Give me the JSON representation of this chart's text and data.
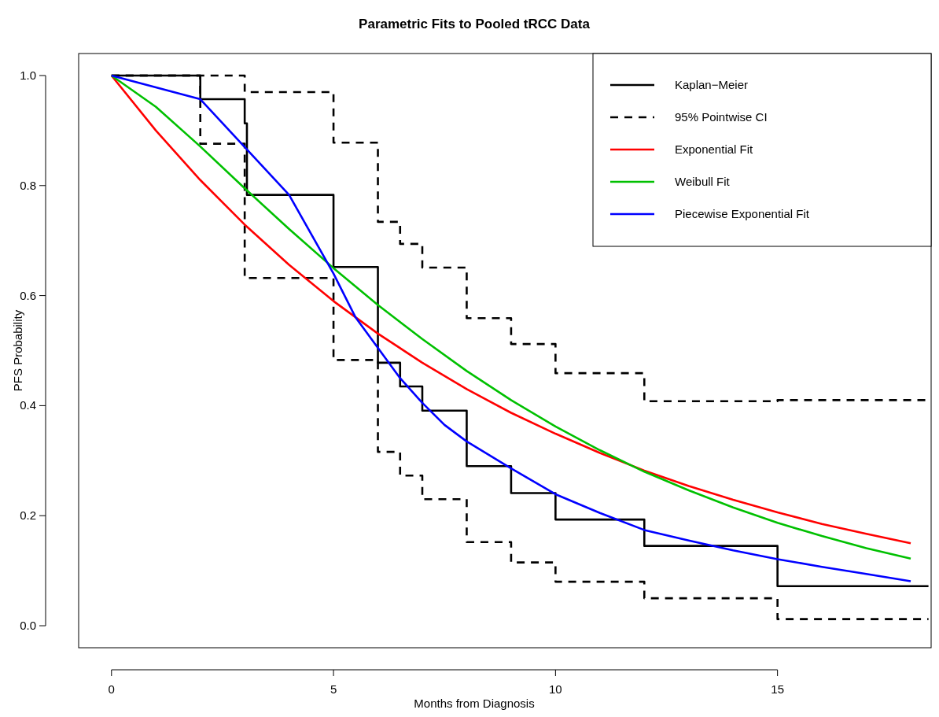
{
  "chart_data": {
    "type": "line",
    "title": "Parametric Fits to Pooled tRCC Data",
    "xlabel": "Months from Diagnosis",
    "ylabel": "PFS Probability",
    "xlim": [
      -0.74,
      18.46
    ],
    "ylim": [
      -0.04,
      1.04
    ],
    "xticks": [
      0,
      5,
      10,
      15
    ],
    "yticks": [
      {
        "value": 0,
        "label": "0.0"
      },
      {
        "value": 0.2,
        "label": "0.2"
      },
      {
        "value": 0.4,
        "label": "0.4"
      },
      {
        "value": 0.6,
        "label": "0.6"
      },
      {
        "value": 0.8,
        "label": "0.8"
      },
      {
        "value": 1,
        "label": "1.0"
      }
    ],
    "grid": false,
    "legend": "top right",
    "series": [
      {
        "name": "Kaplan−Meier",
        "type": "step",
        "color": "#000000",
        "line_style": "solid",
        "x": [
          0,
          2,
          3,
          3.05,
          5,
          6,
          6.5,
          7,
          8,
          9,
          10,
          12,
          15,
          18.4
        ],
        "values": [
          1,
          0.957,
          0.913,
          0.783,
          0.652,
          0.478,
          0.435,
          0.391,
          0.29,
          0.241,
          0.193,
          0.145,
          0.072,
          0.072
        ]
      },
      {
        "name": "95% Pointwise CI",
        "type": "step",
        "color": "#000000",
        "line_style": "dashed",
        "x": [
          0,
          3,
          5,
          6,
          6.5,
          7,
          8,
          9,
          10,
          12,
          15,
          18.4
        ],
        "values": [
          1,
          0.97,
          0.878,
          0.734,
          0.694,
          0.651,
          0.559,
          0.512,
          0.459,
          0.408,
          0.41,
          0.41
        ]
      },
      {
        "type": "step",
        "color": "#000000",
        "line_style": "dashed",
        "x": [
          0,
          2,
          3,
          5,
          6,
          6.5,
          7,
          8,
          9,
          10,
          12,
          15,
          18.4
        ],
        "values": [
          1,
          0.876,
          0.632,
          0.483,
          0.316,
          0.273,
          0.23,
          0.152,
          0.115,
          0.08,
          0.05,
          0.012,
          0.012
        ]
      },
      {
        "name": "Exponential Fit",
        "type": "line",
        "color": "#ff0000",
        "line_style": "solid",
        "x": [
          0,
          1,
          2,
          3,
          4,
          5,
          6,
          7,
          8,
          9,
          10,
          11,
          12,
          13,
          14,
          15,
          16,
          17,
          18
        ],
        "values": [
          1,
          0.9,
          0.81,
          0.729,
          0.656,
          0.59,
          0.531,
          0.478,
          0.43,
          0.387,
          0.349,
          0.314,
          0.282,
          0.254,
          0.229,
          0.206,
          0.185,
          0.167,
          0.15
        ]
      },
      {
        "name": "Weibull Fit",
        "type": "line",
        "color": "#00c000",
        "line_style": "solid",
        "x": [
          0,
          1,
          2,
          3,
          4,
          5,
          6,
          7,
          8,
          9,
          10,
          11,
          12,
          13,
          14,
          15,
          16,
          17,
          18
        ],
        "values": [
          1,
          0.943,
          0.871,
          0.795,
          0.721,
          0.65,
          0.583,
          0.521,
          0.463,
          0.41,
          0.362,
          0.319,
          0.28,
          0.246,
          0.215,
          0.187,
          0.163,
          0.141,
          0.122
        ]
      },
      {
        "name": "Piecewise Exponential Fit",
        "type": "line",
        "color": "#0000ff",
        "line_style": "solid",
        "x": [
          0,
          2,
          3,
          4,
          5,
          5.5,
          6,
          6.5,
          7,
          7.5,
          8,
          9,
          10,
          11,
          12,
          13,
          14,
          15,
          16,
          17,
          18
        ],
        "values": [
          1,
          0.957,
          0.87,
          0.783,
          0.64,
          0.56,
          0.505,
          0.45,
          0.405,
          0.365,
          0.335,
          0.286,
          0.239,
          0.205,
          0.174,
          0.155,
          0.137,
          0.121,
          0.107,
          0.094,
          0.081
        ]
      }
    ]
  }
}
